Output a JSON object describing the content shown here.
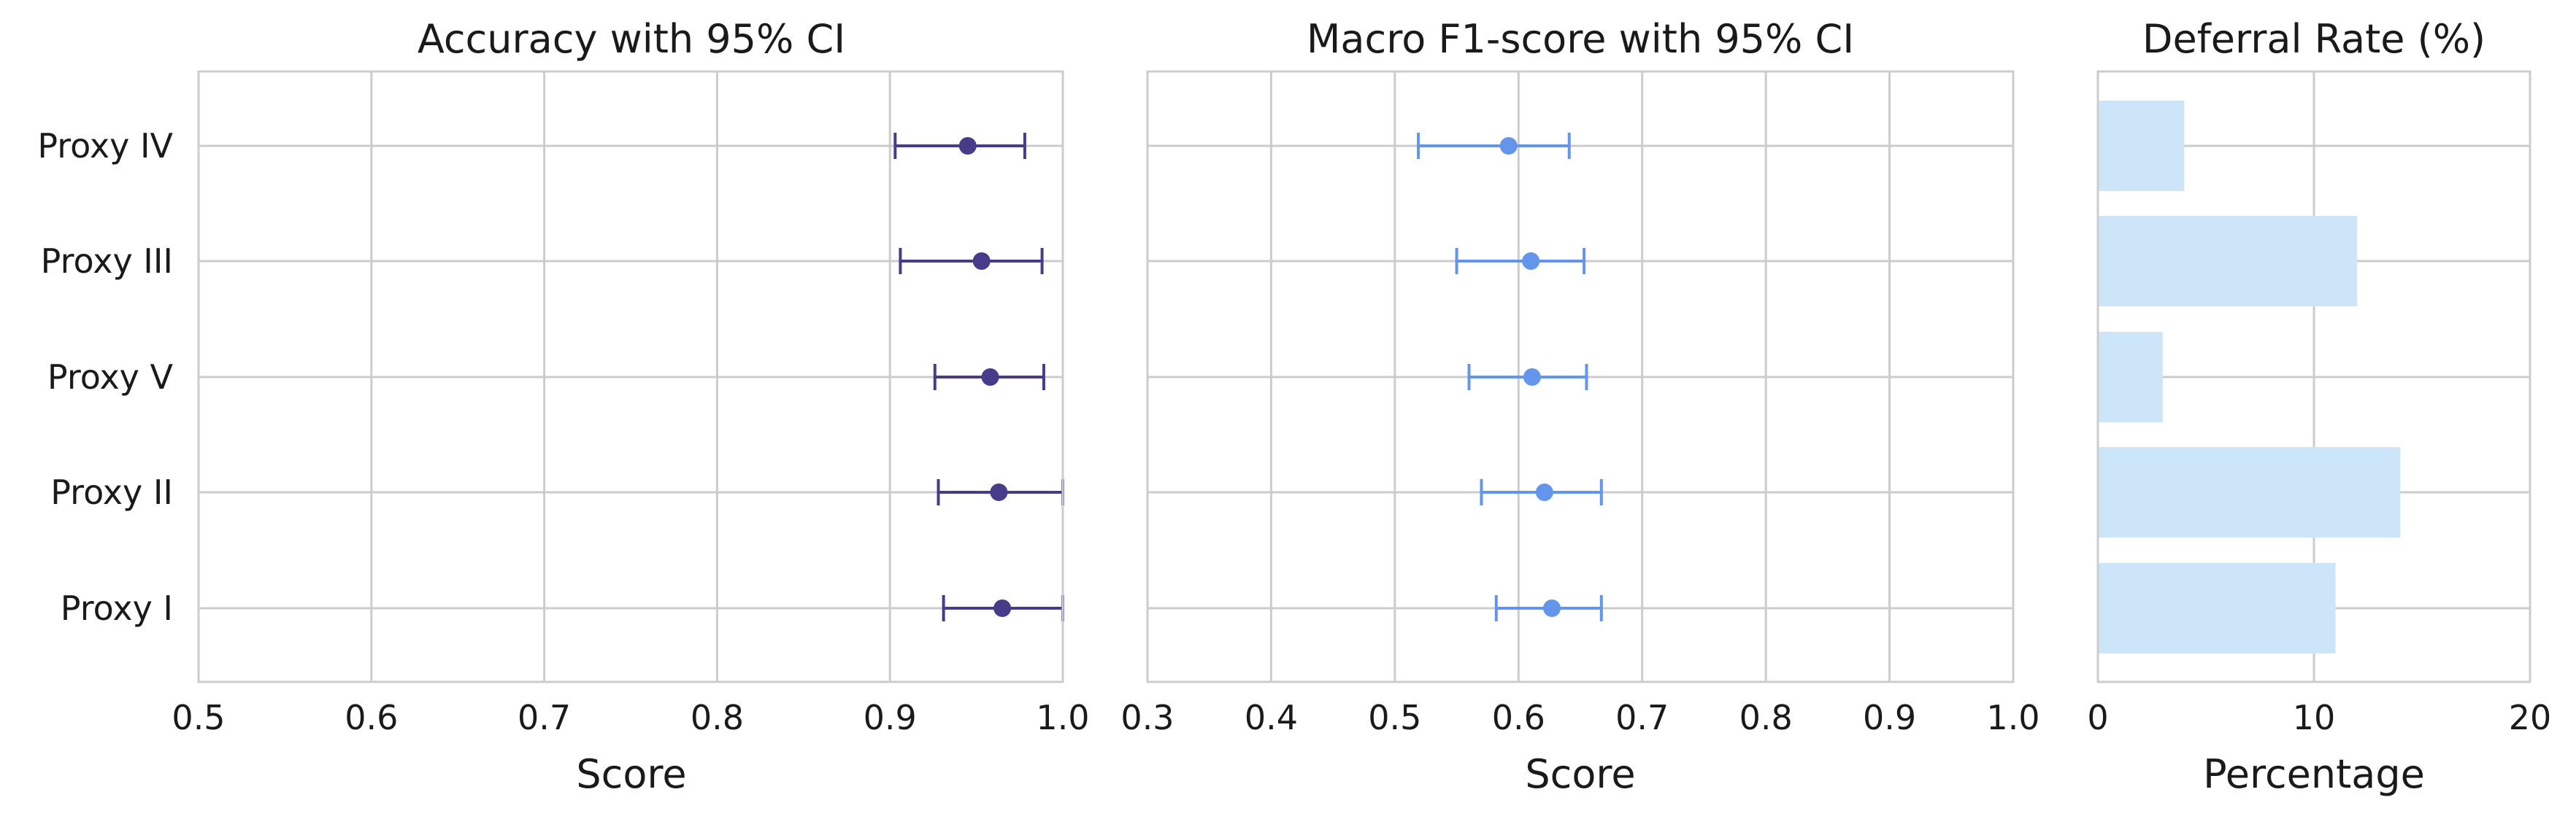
{
  "chart_data": [
    {
      "type": "errorbar",
      "title": "Accuracy with 95% CI",
      "xlabel": "Score",
      "xlim": [
        0.5,
        1.0
      ],
      "xticks": [
        "0.5",
        "0.6",
        "0.7",
        "0.8",
        "0.9",
        "1.0"
      ],
      "categories": [
        "Proxy IV",
        "Proxy III",
        "Proxy V",
        "Proxy II",
        "Proxy I"
      ],
      "values": [
        0.945,
        0.953,
        0.958,
        0.963,
        0.965
      ],
      "ci_low": [
        0.903,
        0.906,
        0.926,
        0.928,
        0.931
      ],
      "ci_high": [
        0.978,
        0.988,
        0.989,
        1.0,
        1.0
      ],
      "color": "#463c8a",
      "grid": true
    },
    {
      "type": "errorbar",
      "title": "Macro F1-score with 95% CI",
      "xlabel": "Score",
      "xlim": [
        0.3,
        1.0
      ],
      "xticks": [
        "0.3",
        "0.4",
        "0.5",
        "0.6",
        "0.7",
        "0.8",
        "0.9",
        "1.0"
      ],
      "categories": [
        "Proxy IV",
        "Proxy III",
        "Proxy V",
        "Proxy II",
        "Proxy I"
      ],
      "values": [
        0.592,
        0.61,
        0.611,
        0.621,
        0.627
      ],
      "ci_low": [
        0.519,
        0.55,
        0.56,
        0.57,
        0.582
      ],
      "ci_high": [
        0.641,
        0.653,
        0.655,
        0.667,
        0.667
      ],
      "color": "#6495ed",
      "grid": true
    },
    {
      "type": "bar",
      "orientation": "horizontal",
      "title": "Deferral Rate (%)",
      "xlabel": "Percentage",
      "xlim": [
        0,
        20
      ],
      "xticks": [
        "0",
        "10",
        "20"
      ],
      "categories": [
        "Proxy IV",
        "Proxy III",
        "Proxy V",
        "Proxy II",
        "Proxy I"
      ],
      "values": [
        4,
        12,
        3,
        14,
        11
      ],
      "color": "#cce5f9",
      "grid": true
    }
  ]
}
